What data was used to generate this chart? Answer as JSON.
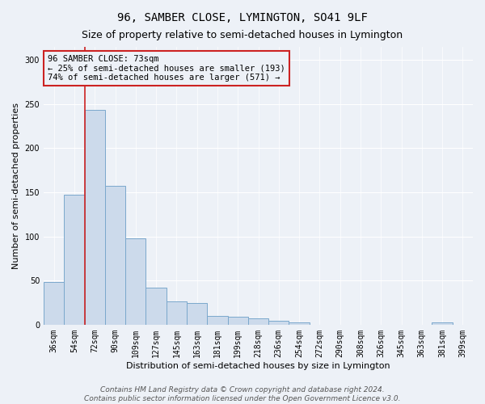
{
  "title": "96, SAMBER CLOSE, LYMINGTON, SO41 9LF",
  "subtitle": "Size of property relative to semi-detached houses in Lymington",
  "xlabel": "Distribution of semi-detached houses by size in Lymington",
  "ylabel": "Number of semi-detached properties",
  "footer1": "Contains HM Land Registry data © Crown copyright and database right 2024.",
  "footer2": "Contains public sector information licensed under the Open Government Licence v3.0.",
  "categories": [
    "36sqm",
    "54sqm",
    "72sqm",
    "90sqm",
    "109sqm",
    "127sqm",
    "145sqm",
    "163sqm",
    "181sqm",
    "199sqm",
    "218sqm",
    "236sqm",
    "254sqm",
    "272sqm",
    "290sqm",
    "308sqm",
    "326sqm",
    "345sqm",
    "363sqm",
    "381sqm",
    "399sqm"
  ],
  "values": [
    48,
    147,
    243,
    157,
    98,
    42,
    26,
    25,
    10,
    9,
    7,
    4,
    3,
    0,
    0,
    0,
    0,
    0,
    0,
    3,
    0
  ],
  "bar_color": "#ccdaeb",
  "bar_edge_color": "#7aa8cc",
  "highlight_bar_index": 2,
  "highlight_color": "#cc2222",
  "annotation_line1": "96 SAMBER CLOSE: 73sqm",
  "annotation_line2": "← 25% of semi-detached houses are smaller (193)",
  "annotation_line3": "74% of semi-detached houses are larger (571) →",
  "ylim": [
    0,
    315
  ],
  "yticks": [
    0,
    50,
    100,
    150,
    200,
    250,
    300
  ],
  "background_color": "#edf1f7",
  "grid_color": "#ffffff",
  "title_fontsize": 10,
  "subtitle_fontsize": 9,
  "axis_label_fontsize": 8,
  "tick_fontsize": 7,
  "footer_fontsize": 6.5
}
